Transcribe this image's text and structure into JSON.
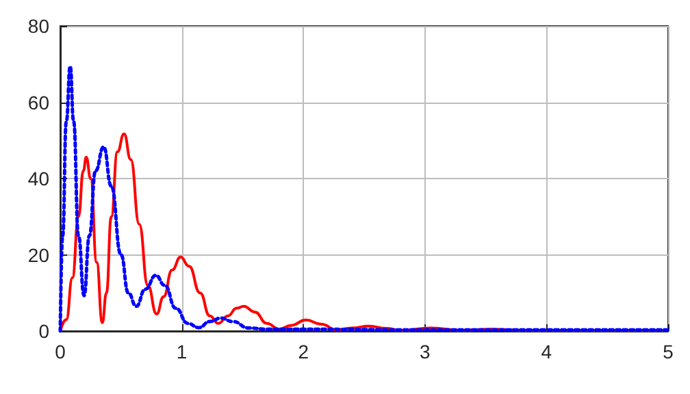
{
  "chart_data": {
    "type": "line",
    "xlim": [
      0,
      5
    ],
    "xticks": [
      0,
      1,
      2,
      3,
      4,
      5
    ],
    "ylim": [
      0,
      80
    ],
    "yticks": [
      0,
      20,
      40,
      60,
      80
    ],
    "grid": true,
    "marker": "none",
    "series": [
      {
        "color": "#ff0000",
        "line_style": "solid",
        "x": [
          0,
          0.05,
          0.1,
          0.15,
          0.19,
          0.214,
          0.25,
          0.3,
          0.346,
          0.38,
          0.42,
          0.47,
          0.525,
          0.58,
          0.65,
          0.72,
          0.793,
          0.85,
          0.92,
          0.99,
          1.06,
          1.15,
          1.23,
          1.3,
          1.38,
          1.45,
          1.51,
          1.6,
          1.7,
          1.8,
          1.9,
          2.02,
          2.15,
          2.27,
          2.4,
          2.54,
          2.68,
          2.8,
          3.05,
          3.3,
          3.55,
          3.8,
          4,
          5
        ],
        "values": [
          0,
          3,
          14,
          30,
          42,
          45.6,
          40,
          18,
          2.2,
          10,
          30,
          47,
          51.7,
          45,
          28,
          12,
          4.5,
          9,
          16,
          19.4,
          17,
          10,
          4,
          2,
          4,
          6,
          6.5,
          5,
          2,
          0.5,
          1.5,
          2.9,
          1.8,
          0.3,
          0.8,
          1.3,
          0.7,
          0.2,
          0.8,
          0.2,
          0.5,
          0.2,
          0.2,
          0.2
        ]
      },
      {
        "color": "#0000ff",
        "line_style": "dotted",
        "x": [
          0,
          0.02,
          0.05,
          0.082,
          0.11,
          0.15,
          0.196,
          0.24,
          0.29,
          0.357,
          0.42,
          0.5,
          0.56,
          0.625,
          0.7,
          0.786,
          0.86,
          0.95,
          1.05,
          1.14,
          1.23,
          1.32,
          1.42,
          1.55,
          1.7,
          2,
          3,
          5
        ],
        "values": [
          0,
          25,
          55,
          69.4,
          55,
          25,
          9.3,
          25,
          42,
          48.3,
          38,
          20,
          10,
          6.5,
          11,
          14.6,
          12,
          6,
          2,
          0.9,
          2.5,
          3.4,
          2.5,
          0.8,
          0.5,
          0.5,
          0.3,
          0.3
        ]
      }
    ]
  }
}
